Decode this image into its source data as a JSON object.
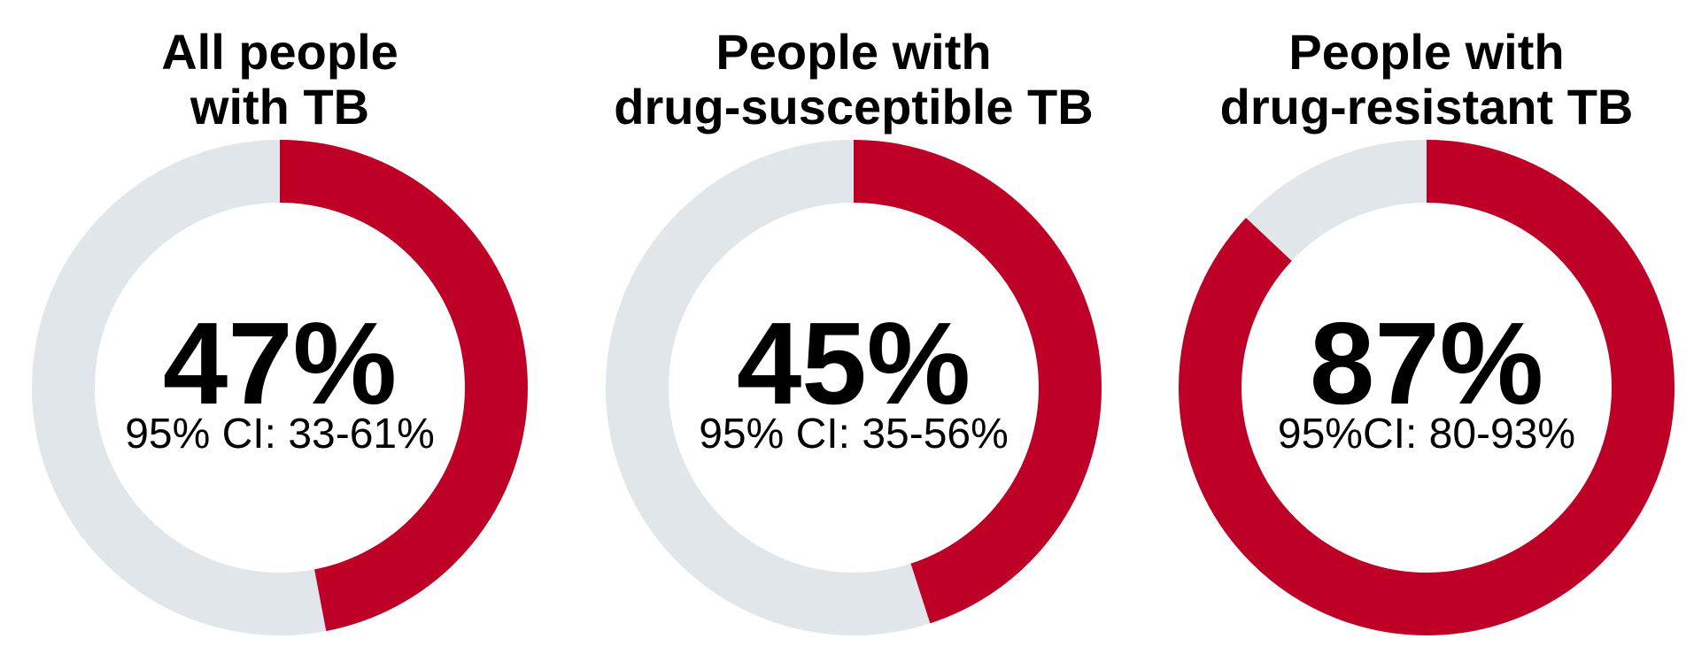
{
  "chart_data": {
    "type": "pie",
    "variant": "donut",
    "colors": {
      "value": "#BE0027",
      "remainder": "#E1E6EA"
    },
    "charts": [
      {
        "title_lines": [
          "All people",
          "with TB"
        ],
        "value": 47,
        "value_label": "47%",
        "ci_label": "95% CI: 33-61%"
      },
      {
        "title_lines": [
          "People with",
          "drug-susceptible TB"
        ],
        "value": 45,
        "value_label": "45%",
        "ci_label": "95% CI: 35-56%"
      },
      {
        "title_lines": [
          "People with",
          "drug-resistant TB"
        ],
        "value": 87,
        "value_label": "87%",
        "ci_label": "95%CI: 80-93%"
      }
    ]
  }
}
